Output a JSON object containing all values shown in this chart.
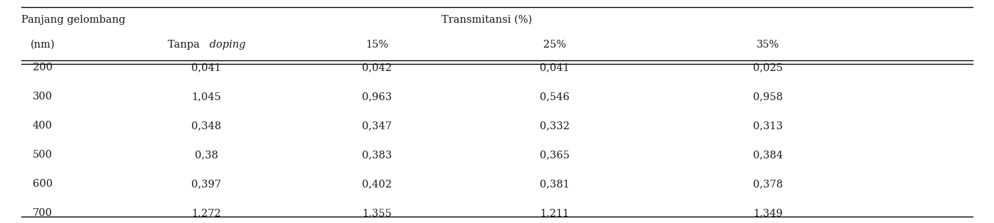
{
  "col_header_row1_left": "Panjang gelombang",
  "col_header_row1_right": "Transmitansi (%)",
  "col_header_row2": [
    "(nm)",
    "Tanpa ",
    "doping",
    "15%",
    "25%",
    "35%"
  ],
  "rows": [
    [
      "200",
      "0,041",
      "0,042",
      "0,041",
      "0,025"
    ],
    [
      "300",
      "1,045",
      "0,963",
      "0,546",
      "0,958"
    ],
    [
      "400",
      "0,348",
      "0,347",
      "0,332",
      "0,313"
    ],
    [
      "500",
      "0,38",
      "0,383",
      "0,365",
      "0,384"
    ],
    [
      "600",
      "0,397",
      "0,402",
      "0,381",
      "0,378"
    ],
    [
      "700",
      "1,272",
      "1,355",
      "1,211",
      "1,349"
    ]
  ],
  "bg_color": "#ffffff",
  "text_color": "#1a1a1a",
  "line_color": "#000000",
  "font_size": 10.5,
  "fig_width": 13.98,
  "fig_height": 3.14,
  "dpi": 100
}
